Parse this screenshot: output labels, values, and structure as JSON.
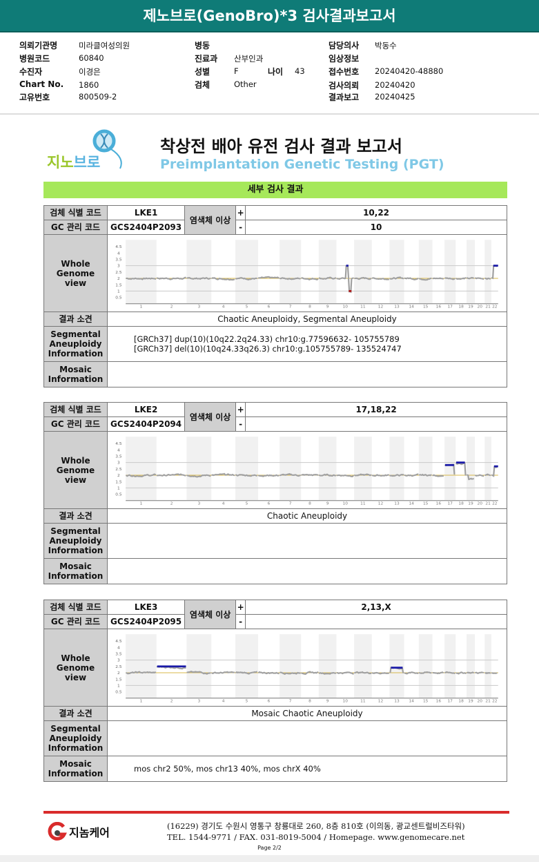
{
  "header": {
    "title": "제노브로(GenoBro)*3 검사결과보고서"
  },
  "info": {
    "col1": [
      {
        "k": "의뢰기관명",
        "v": "미라클여성의원"
      },
      {
        "k": "병원코드",
        "v": "60840"
      },
      {
        "k": "수진자",
        "v": "이경은"
      },
      {
        "k": "Chart No.",
        "v": "1860"
      },
      {
        "k": "고유번호",
        "v": "800509-2"
      }
    ],
    "col2": [
      {
        "k": "병동",
        "v": ""
      },
      {
        "k": "진료과",
        "v": "산부인과"
      },
      {
        "k": "성별",
        "v": "F"
      },
      {
        "k": "검체",
        "v": "Other"
      }
    ],
    "age_label": "나이",
    "age": "43",
    "col3": [
      {
        "k": "담당의사",
        "v": "박동수"
      },
      {
        "k": "임상정보",
        "v": ""
      },
      {
        "k": "접수번호",
        "v": "20240420-48880"
      },
      {
        "k": "검사의뢰",
        "v": "20240420"
      },
      {
        "k": "결과보고",
        "v": "20240425"
      }
    ]
  },
  "report": {
    "logo_text": "지노브로",
    "title_ko": "착상전 배아 유전 검사 결과 보고서",
    "title_en": "Preimplantation Genetic Testing (PGT)",
    "section": "세부 검사 결과"
  },
  "labels": {
    "sample_id": "검체 식별 코드",
    "gc_code": "GC 관리 코드",
    "abnormality": "염색체 이상",
    "plus": "+",
    "minus": "-",
    "genome": "Whole Genome view",
    "finding": "결과 소견",
    "segmental": "Segmental Aneuploidy Information",
    "mosaic": "Mosaic Information"
  },
  "chart_axis": {
    "y_ticks": [
      "4.5",
      "4",
      "3.5",
      "3",
      "2.5",
      "2",
      "1.5",
      "1",
      "0.5"
    ],
    "chromosomes": [
      "1",
      "2",
      "3",
      "4",
      "5",
      "6",
      "7",
      "8",
      "9",
      "10",
      "11",
      "12",
      "13",
      "14",
      "15",
      "16",
      "17",
      "18",
      "19",
      "20",
      "21",
      "22"
    ],
    "baseline": 2,
    "colors": {
      "gain": "#1a1aa8",
      "loss": "#b01818",
      "trace": "#a0a0a0",
      "baseline": "#d8b84a"
    }
  },
  "samples": [
    {
      "id": "LKE1",
      "gc": "GCS2404P2093",
      "plus": "10,22",
      "minus": "10",
      "finding": "Chaotic Aneuploidy, Segmental Aneuploidy",
      "segmental": [
        "[GRCh37] dup(10)(10q22.2q24.33) chr10:g.77596632- 105755789",
        "[GRCh37] del(10)(10q24.33q26.3) chr10:g.105755789- 135524747"
      ],
      "mosaic": [],
      "segments": [
        {
          "chr": 10,
          "from": 0.55,
          "to": 0.68,
          "cn": 3,
          "type": "gain"
        },
        {
          "chr": 10,
          "from": 0.7,
          "to": 0.85,
          "cn": 1,
          "type": "loss"
        },
        {
          "chr": 22,
          "from": 0.3,
          "to": 1,
          "cn": 3,
          "type": "gain"
        }
      ]
    },
    {
      "id": "LKE2",
      "gc": "GCS2404P2094",
      "plus": "17,18,22",
      "minus": "",
      "finding": "Chaotic Aneuploidy",
      "segmental": [],
      "mosaic": [],
      "segments": [
        {
          "chr": 17,
          "from": 0.05,
          "to": 0.85,
          "cn": 2.8,
          "type": "gain"
        },
        {
          "chr": 18,
          "from": 0.05,
          "to": 0.85,
          "cn": 3,
          "type": "gain"
        },
        {
          "chr": 19,
          "from": 0.2,
          "to": 0.9,
          "cn": 1.7,
          "type": "trace"
        },
        {
          "chr": 22,
          "from": 0.4,
          "to": 1,
          "cn": 2.7,
          "type": "gain"
        }
      ]
    },
    {
      "id": "LKE3",
      "gc": "GCS2404P2095",
      "plus": "2,13,X",
      "minus": "",
      "finding": "Mosaic Chaotic Aneuploidy",
      "segmental": [],
      "mosaic": [
        "mos chr2 50%, mos chr13 40%, mos chrX 40%"
      ],
      "segments": [
        {
          "chr": 2,
          "from": 0.02,
          "to": 0.98,
          "cn": 2.5,
          "type": "gain"
        },
        {
          "chr": 13,
          "from": 0.1,
          "to": 0.9,
          "cn": 2.4,
          "type": "gain"
        }
      ]
    }
  ],
  "footer": {
    "company": "지놈케어",
    "address": "(16229) 경기도 수원시 영통구 창룡대로 260, 8층 810호 (이의동, 광교센트럴비즈타워)",
    "contact": "TEL. 1544-9771 / FAX. 031-8019-5004 / Homepage. www.genomecare.net",
    "page": "Page 2/2"
  }
}
